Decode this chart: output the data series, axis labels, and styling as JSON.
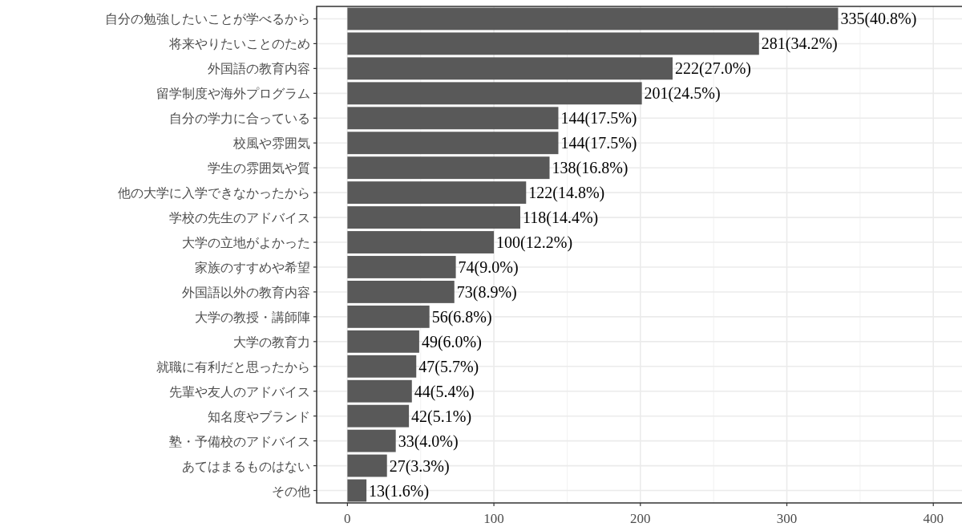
{
  "chart_data": {
    "type": "bar",
    "orientation": "horizontal",
    "categories": [
      "自分の勉強したいことが学べるから",
      "将来やりたいことのため",
      "外国語の教育内容",
      "留学制度や海外プログラム",
      "自分の学力に合っている",
      "校風や雰囲気",
      "学生の雰囲気や質",
      "他の大学に入学できなかったから",
      "学校の先生のアドバイス",
      "大学の立地がよかった",
      "家族のすすめや希望",
      "外国語以外の教育内容",
      "大学の教授・講師陣",
      "大学の教育力",
      "就職に有利だと思ったから",
      "先輩や友人のアドバイス",
      "知名度やブランド",
      "塾・予備校のアドバイス",
      "あてはまるものはない",
      "その他"
    ],
    "values": [
      335,
      281,
      222,
      201,
      144,
      144,
      138,
      122,
      118,
      100,
      74,
      73,
      56,
      49,
      47,
      44,
      42,
      33,
      27,
      13
    ],
    "value_labels": [
      "335(40.8%)",
      "281(34.2%)",
      "222(27.0%)",
      "201(24.5%)",
      "144(17.5%)",
      "144(17.5%)",
      "138(16.8%)",
      "122(14.8%)",
      "118(14.4%)",
      "100(12.2%)",
      "74(9.0%)",
      "73(8.9%)",
      "56(6.8%)",
      "49(6.0%)",
      "47(5.7%)",
      "44(5.4%)",
      "42(5.1%)",
      "33(4.0%)",
      "27(3.3%)",
      "13(1.6%)"
    ],
    "color": "#595959",
    "xlim": [
      -21,
      436
    ],
    "xticks": [
      0,
      100,
      200,
      300,
      400
    ],
    "grid": true
  }
}
